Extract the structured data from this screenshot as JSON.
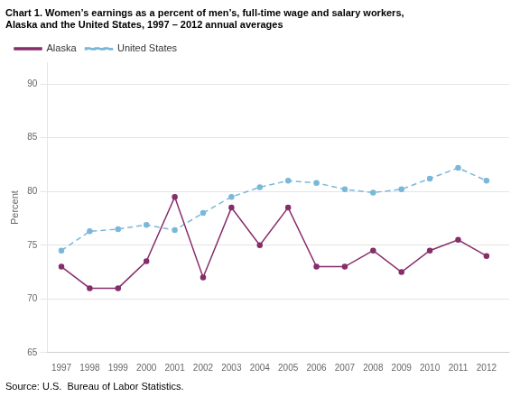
{
  "chart_data": {
    "type": "line",
    "title": [
      "Chart 1. Women’s earnings as a percent of men’s, full-time wage and salary workers,",
      "Alaska and the United States, 1997 – 2012 annual averages"
    ],
    "ylabel": "Percent",
    "annotations": [
      "Source: U.S.  Bureau of Labor Statistics."
    ],
    "x": [
      1997,
      1998,
      1999,
      2000,
      2001,
      2002,
      2003,
      2004,
      2005,
      2006,
      2007,
      2008,
      2009,
      2010,
      2011,
      2012
    ],
    "series": [
      {
        "name": "Alaska",
        "color": "#862d6b",
        "line_style": "solid",
        "marker": "circle",
        "values": [
          73.0,
          71.0,
          71.0,
          73.5,
          79.5,
          72.0,
          78.5,
          75.0,
          78.5,
          73.0,
          73.0,
          74.5,
          72.5,
          74.5,
          75.5,
          74.0
        ]
      },
      {
        "name": "United States",
        "color": "#7ab8d9",
        "line_style": "dashed",
        "marker": "circle",
        "values": [
          74.5,
          76.3,
          76.5,
          76.9,
          76.4,
          78.0,
          79.5,
          80.4,
          81.0,
          80.8,
          80.2,
          79.9,
          80.2,
          81.2,
          82.2,
          81.0
        ]
      }
    ],
    "xlim": [
      1996.5,
      2012.8
    ],
    "xticks": [
      1997,
      1998,
      1999,
      2000,
      2001,
      2002,
      2003,
      2004,
      2005,
      2006,
      2007,
      2008,
      2009,
      2010,
      2011,
      2012
    ],
    "ylim": [
      65,
      92
    ],
    "yticks": [
      65,
      70,
      75,
      80,
      85,
      90
    ],
    "grid": "y",
    "legend": "upper left"
  }
}
